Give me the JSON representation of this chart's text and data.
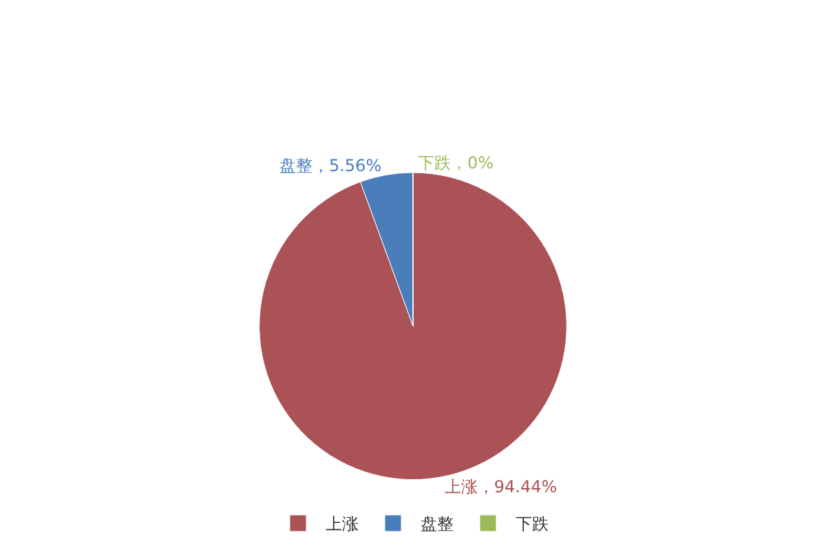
{
  "chart_data": {
    "type": "pie",
    "categories": [
      "上涨",
      "盘整",
      "下跌"
    ],
    "values": [
      94.44,
      5.56,
      0
    ],
    "colors": [
      "#ab5256",
      "#4a7ebb",
      "#9bbb59"
    ],
    "value_labels": [
      "上涨，94.44%",
      "盘整，5.56%",
      "下跌，0%"
    ],
    "legend": "bottom"
  }
}
